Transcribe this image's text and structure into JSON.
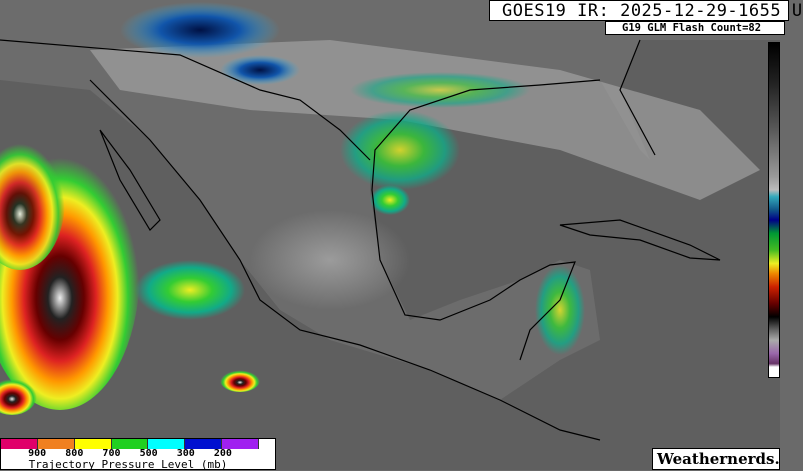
{
  "header": {
    "title": "GOES19 IR: 2025-12-29-1655 U",
    "subtitle": "G19 GLM Flash Count=82"
  },
  "legend": {
    "title": "Trajectory Pressure Level (mb)",
    "colors": [
      "#e0006a",
      "#f08020",
      "#ffff00",
      "#20d020",
      "#00ffff",
      "#0010d0",
      "#a020f0"
    ],
    "ticks": [
      "900",
      "800",
      "700",
      "500",
      "300",
      "200"
    ]
  },
  "colorbar": {
    "type": "IR brightness temperature enhancement"
  },
  "watermark": "Weathernerds.",
  "map": {
    "region": "Gulf of Mexico, Mexico, Central America, Caribbean"
  }
}
